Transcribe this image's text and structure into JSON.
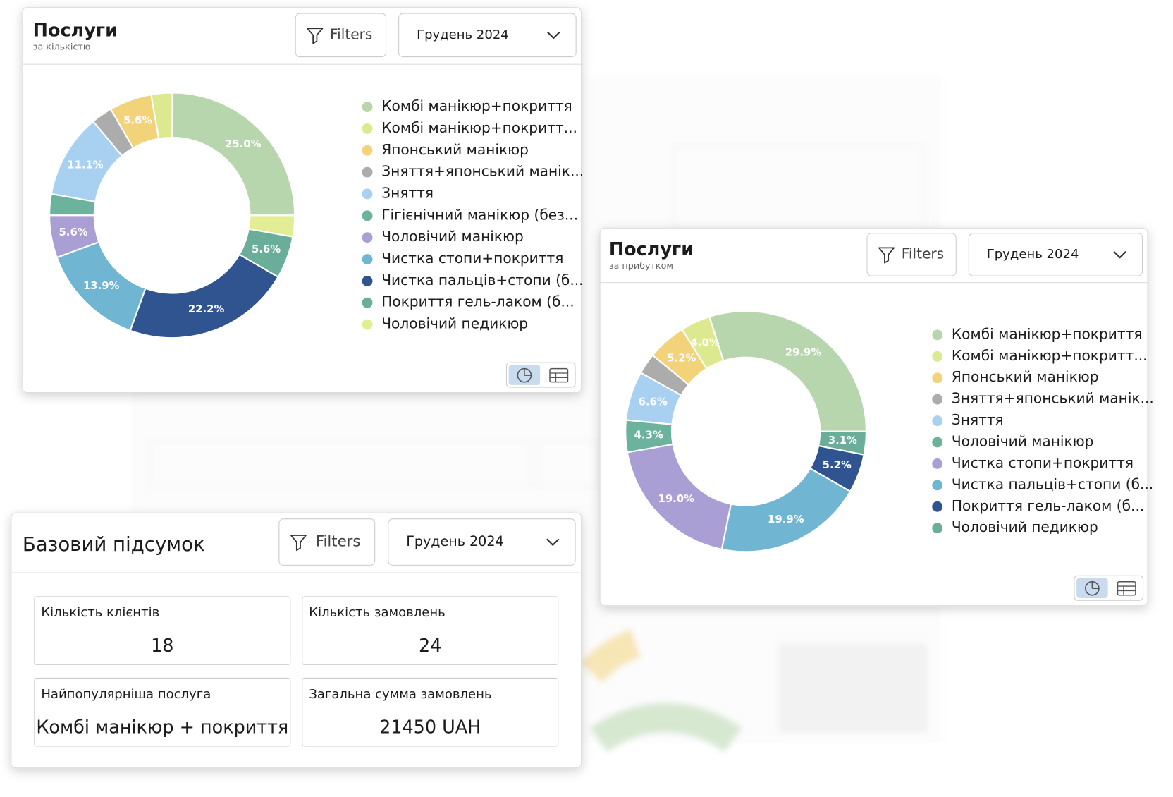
{
  "chart_data": [
    {
      "type": "pie",
      "title": "Послуги",
      "subtitle": "за кількістю",
      "filter_label": "Filters",
      "period": "Грудень 2024",
      "categories": [
        "Комбі манікюр+покриття",
        "Комбі манікюр+покритт...",
        "Японський манікюр",
        "Зняття+японський манік...",
        "Зняття",
        "Гігієнічний манікюр (без...",
        "Чоловічий манікюр",
        "Чистка стопи+покриття",
        "Чистка пальців+стопи (б...",
        "Покриття гель-лаком (б...",
        "Чоловічий педикюр"
      ],
      "values": [
        25.0,
        2.8,
        5.6,
        2.8,
        11.1,
        2.8,
        5.6,
        13.9,
        22.2,
        5.6,
        2.8
      ],
      "value_labels": [
        "25.0%",
        null,
        "5.6%",
        null,
        "11.1%",
        null,
        "5.6%",
        "13.9%",
        "22.2%",
        "5.6%",
        null
      ],
      "colors": [
        "#b7d6ad",
        "#dde98f",
        "#f2d37a",
        "#acacac",
        "#a8d1f1",
        "#6cb39e",
        "#aa9fd5",
        "#70b6d2",
        "#30548f",
        "#6aae99",
        "#e2ed95"
      ]
    },
    {
      "type": "pie",
      "title": "Послуги",
      "subtitle": "за прибутком",
      "filter_label": "Filters",
      "period": "Грудень 2024",
      "categories": [
        "Комбі манікюр+покриття",
        "Комбі манікюр+покритт...",
        "Японський манікюр",
        "Зняття+японський манік...",
        "Зняття",
        "Чоловічий манікюр",
        "Чистка стопи+покриття",
        "Чистка пальців+стопи (б...",
        "Покриття гель-лаком (б...",
        "Чоловічий педикюр"
      ],
      "values": [
        29.9,
        4.0,
        5.2,
        2.8,
        6.6,
        4.3,
        19.0,
        19.9,
        5.2,
        3.1
      ],
      "value_labels": [
        "29.9%",
        "4.0%",
        "5.2%",
        null,
        "6.6%",
        "4.3%",
        "19.0%",
        "19.9%",
        "5.2%",
        "3.1%"
      ],
      "colors": [
        "#b7d6ad",
        "#dde98f",
        "#f2d37a",
        "#acacac",
        "#a8d1f1",
        "#6cb39e",
        "#aa9fd5",
        "#70b6d2",
        "#30548f",
        "#6aae99"
      ]
    }
  ],
  "summary": {
    "title": "Базовий підсумок",
    "filter_label": "Filters",
    "period": "Грудень 2024",
    "cards": [
      {
        "label": "Кількість клієнтів",
        "value": "18"
      },
      {
        "label": "Кількість замовлень",
        "value": "24"
      },
      {
        "label": "Найпопулярніша послуга",
        "value": "Комбі манікюр + покриття"
      },
      {
        "label": "Загальна сумма замовлень",
        "value": "21450 UAH"
      }
    ]
  }
}
